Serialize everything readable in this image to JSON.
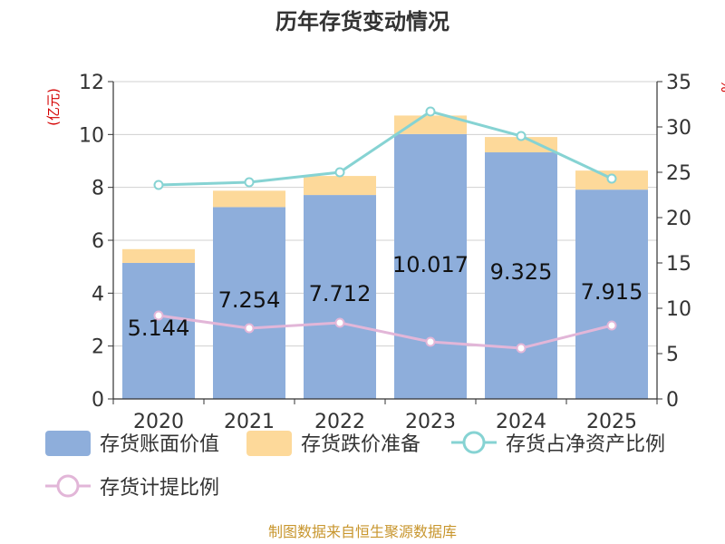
{
  "chart_data": {
    "type": "bar",
    "title": "历年存货变动情况",
    "categories": [
      "2020",
      "2021",
      "2022",
      "2023",
      "2024",
      "2025"
    ],
    "ylabel": "(亿元)",
    "ylabel_right": "%",
    "ylim": [
      0,
      12
    ],
    "ylim_right": [
      0,
      35
    ],
    "yticks": [
      0,
      2,
      4,
      6,
      8,
      10,
      12
    ],
    "yticks_right": [
      0,
      5,
      10,
      15,
      20,
      25,
      30,
      35
    ],
    "grid": true,
    "legend_position": "bottom",
    "series": [
      {
        "name": "存货账面价值",
        "kind": "bar",
        "axis": "left",
        "color": "#8eaedb",
        "values": [
          5.144,
          7.254,
          7.712,
          10.017,
          9.325,
          7.915
        ]
      },
      {
        "name": "存货跌价准备",
        "kind": "bar",
        "axis": "left",
        "color": "#fdd99a",
        "values": [
          0.52,
          0.62,
          0.72,
          0.7,
          0.58,
          0.72
        ]
      },
      {
        "name": "存货占净资产比例",
        "kind": "line",
        "axis": "right",
        "color": "#86d3d3",
        "values": [
          23.6,
          23.9,
          25.0,
          31.7,
          29.0,
          24.3
        ]
      },
      {
        "name": "存货计提比例",
        "kind": "line",
        "axis": "right",
        "color": "#e2b6d8",
        "values": [
          9.2,
          7.8,
          8.4,
          6.3,
          5.6,
          8.1
        ]
      }
    ],
    "data_labels": [
      "5.144",
      "7.254",
      "7.712",
      "10.017",
      "9.325",
      "7.915"
    ]
  },
  "footer": {
    "source": "制图数据来自恒生聚源数据库"
  }
}
